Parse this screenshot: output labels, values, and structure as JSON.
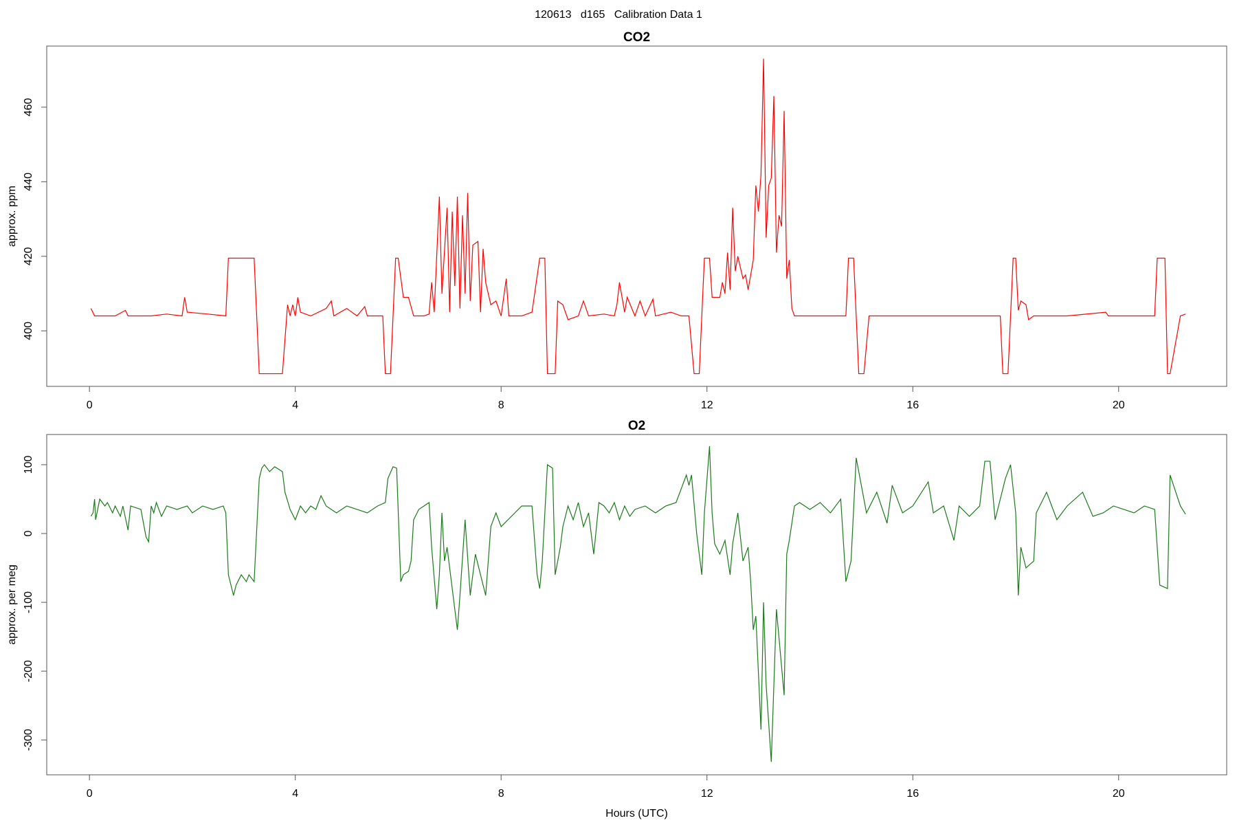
{
  "title": "120613   d165   Calibration Data 1",
  "chart_data": [
    {
      "type": "line",
      "title": "CO2",
      "ylabel": "approx. ppm",
      "color": "#ff0000",
      "xlim": [
        -0.83,
        22.1
      ],
      "ylim": [
        385.1,
        476.4
      ],
      "xticks": [
        0,
        4,
        8,
        12,
        16,
        20
      ],
      "yticks": [
        400,
        420,
        440,
        460
      ],
      "x": [
        0.03,
        0.1,
        0.5,
        0.7,
        0.75,
        1.2,
        1.5,
        1.8,
        1.85,
        1.9,
        2.3,
        2.65,
        2.7,
        3.2,
        3.3,
        3.75,
        3.85,
        3.9,
        3.95,
        4.0,
        4.05,
        4.1,
        4.3,
        4.6,
        4.7,
        4.75,
        5.0,
        5.2,
        5.35,
        5.4,
        5.7,
        5.75,
        5.85,
        5.95,
        6.0,
        6.1,
        6.2,
        6.3,
        6.5,
        6.6,
        6.65,
        6.7,
        6.8,
        6.85,
        6.95,
        7.0,
        7.05,
        7.1,
        7.15,
        7.2,
        7.25,
        7.3,
        7.35,
        7.4,
        7.45,
        7.55,
        7.6,
        7.65,
        7.7,
        7.8,
        7.9,
        8.0,
        8.1,
        8.15,
        8.4,
        8.6,
        8.75,
        8.85,
        8.9,
        9.05,
        9.1,
        9.2,
        9.3,
        9.5,
        9.6,
        9.7,
        10.0,
        10.2,
        10.25,
        10.3,
        10.4,
        10.45,
        10.6,
        10.7,
        10.8,
        10.95,
        11.0,
        11.3,
        11.5,
        11.65,
        11.75,
        11.85,
        11.95,
        12.05,
        12.1,
        12.25,
        12.3,
        12.35,
        12.4,
        12.45,
        12.5,
        12.55,
        12.6,
        12.7,
        12.75,
        12.8,
        12.9,
        12.95,
        13.0,
        13.05,
        13.1,
        13.15,
        13.2,
        13.25,
        13.3,
        13.35,
        13.4,
        13.45,
        13.5,
        13.55,
        13.6,
        13.65,
        13.7,
        14.0,
        14.5,
        14.7,
        14.75,
        14.85,
        14.95,
        15.05,
        15.15,
        16.0,
        17.0,
        17.7,
        17.75,
        17.85,
        17.95,
        18.0,
        18.05,
        18.1,
        18.2,
        18.25,
        18.35,
        19.0,
        19.75,
        19.8,
        20.7,
        20.75,
        20.9,
        20.95,
        21.0,
        21.2,
        21.3
      ],
      "values": [
        406,
        404,
        404,
        405.5,
        404,
        404,
        404.5,
        404,
        409,
        405,
        404.5,
        404,
        419.5,
        419.5,
        388.5,
        388.5,
        407,
        404,
        407,
        404,
        409,
        405,
        404,
        406,
        408,
        404,
        406,
        404,
        406.5,
        404,
        404,
        388.5,
        388.5,
        419.5,
        419.5,
        409,
        409,
        404,
        404,
        404.5,
        413,
        405,
        436,
        410,
        433,
        405,
        432,
        412,
        436,
        406,
        431,
        410,
        437,
        408,
        423,
        424,
        405,
        422,
        413,
        407,
        408,
        404,
        414,
        404,
        404,
        405,
        419.5,
        419.5,
        388.5,
        388.5,
        408,
        407,
        403,
        404,
        408,
        404,
        404.5,
        404,
        407,
        413,
        405,
        409,
        404,
        408,
        404,
        408.5,
        404,
        405,
        404,
        404,
        388.5,
        388.5,
        419.5,
        419.5,
        409,
        409,
        413,
        410,
        421,
        411,
        433,
        416,
        420,
        414,
        415,
        411,
        419,
        439,
        432,
        442,
        473,
        425,
        439,
        441,
        463,
        421,
        431,
        428,
        459,
        414,
        419,
        406,
        404,
        404,
        404,
        404,
        419.5,
        419.5,
        388.5,
        388.5,
        404,
        404,
        404,
        404,
        388.5,
        388.5,
        419.5,
        419.5,
        405.5,
        408,
        407,
        403,
        404,
        404,
        405,
        404,
        404,
        419.5,
        419.5,
        388.5,
        388.5,
        404,
        404.5
      ]
    },
    {
      "type": "line",
      "title": "O2",
      "ylabel": "approx. per meg",
      "xlabel": "Hours (UTC)",
      "color": "#1a7a1a",
      "xlim": [
        -0.83,
        22.1
      ],
      "ylim": [
        -350.7,
        143.9
      ],
      "xticks": [
        0,
        4,
        8,
        12,
        16,
        20
      ],
      "yticks": [
        -300,
        -200,
        -100,
        0,
        100
      ],
      "x": [
        0.03,
        0.07,
        0.1,
        0.12,
        0.2,
        0.3,
        0.35,
        0.45,
        0.5,
        0.6,
        0.65,
        0.75,
        0.8,
        1.0,
        1.1,
        1.15,
        1.2,
        1.25,
        1.3,
        1.4,
        1.5,
        1.7,
        1.9,
        2.0,
        2.2,
        2.4,
        2.6,
        2.65,
        2.7,
        2.8,
        2.85,
        2.95,
        3.05,
        3.1,
        3.2,
        3.3,
        3.35,
        3.4,
        3.5,
        3.6,
        3.75,
        3.8,
        3.9,
        4.0,
        4.1,
        4.2,
        4.3,
        4.4,
        4.5,
        4.6,
        4.8,
        5.0,
        5.2,
        5.4,
        5.6,
        5.75,
        5.8,
        5.9,
        5.97,
        6.05,
        6.1,
        6.2,
        6.25,
        6.3,
        6.4,
        6.5,
        6.6,
        6.65,
        6.75,
        6.8,
        6.85,
        6.9,
        6.95,
        7.05,
        7.15,
        7.2,
        7.3,
        7.4,
        7.5,
        7.6,
        7.7,
        7.8,
        7.9,
        8.0,
        8.2,
        8.4,
        8.6,
        8.7,
        8.75,
        8.8,
        8.9,
        9.0,
        9.05,
        9.15,
        9.2,
        9.3,
        9.4,
        9.5,
        9.6,
        9.7,
        9.8,
        9.9,
        10.0,
        10.1,
        10.2,
        10.3,
        10.4,
        10.5,
        10.6,
        10.8,
        11.0,
        11.2,
        11.4,
        11.6,
        11.65,
        11.7,
        11.8,
        11.9,
        11.95,
        12.05,
        12.1,
        12.15,
        12.25,
        12.35,
        12.45,
        12.5,
        12.6,
        12.7,
        12.8,
        12.85,
        12.9,
        12.95,
        13.05,
        13.1,
        13.15,
        13.25,
        13.35,
        13.5,
        13.55,
        13.6,
        13.7,
        13.8,
        14.0,
        14.2,
        14.4,
        14.6,
        14.7,
        14.8,
        14.9,
        15.0,
        15.1,
        15.3,
        15.5,
        15.6,
        15.8,
        16.0,
        16.3,
        16.4,
        16.6,
        16.8,
        16.9,
        17.1,
        17.3,
        17.4,
        17.5,
        17.6,
        17.8,
        17.9,
        18.0,
        18.05,
        18.1,
        18.2,
        18.35,
        18.4,
        18.6,
        18.8,
        19.0,
        19.3,
        19.5,
        19.7,
        19.9,
        20.1,
        20.3,
        20.5,
        20.7,
        20.8,
        20.95,
        21.0,
        21.2,
        21.3
      ],
      "values": [
        25,
        30,
        50,
        20,
        50,
        40,
        45,
        30,
        40,
        25,
        40,
        5,
        40,
        35,
        -5,
        -12,
        40,
        30,
        45,
        25,
        40,
        35,
        40,
        30,
        40,
        35,
        40,
        30,
        -60,
        -90,
        -75,
        -60,
        -70,
        -60,
        -70,
        80,
        95,
        100,
        90,
        97,
        90,
        60,
        35,
        20,
        40,
        30,
        40,
        35,
        55,
        40,
        30,
        40,
        35,
        30,
        40,
        45,
        80,
        97,
        95,
        -70,
        -60,
        -55,
        -40,
        20,
        35,
        40,
        45,
        -20,
        -110,
        -60,
        30,
        -40,
        -20,
        -80,
        -140,
        -90,
        20,
        -90,
        -30,
        -60,
        -90,
        10,
        30,
        10,
        25,
        40,
        40,
        -60,
        -80,
        -40,
        100,
        95,
        -60,
        -20,
        10,
        40,
        20,
        45,
        10,
        30,
        -30,
        45,
        40,
        30,
        45,
        20,
        40,
        25,
        35,
        40,
        30,
        40,
        45,
        85,
        70,
        85,
        0,
        -60,
        30,
        127,
        30,
        -15,
        -30,
        -10,
        -60,
        -15,
        30,
        -40,
        -20,
        -70,
        -140,
        -120,
        -285,
        -100,
        -220,
        -332,
        -110,
        -235,
        -30,
        -10,
        40,
        45,
        35,
        45,
        30,
        50,
        -70,
        -40,
        110,
        70,
        30,
        60,
        15,
        70,
        30,
        40,
        75,
        30,
        40,
        -10,
        40,
        25,
        40,
        105,
        105,
        20,
        80,
        100,
        30,
        -90,
        -20,
        -50,
        -40,
        30,
        60,
        20,
        40,
        60,
        25,
        30,
        40,
        35,
        30,
        40,
        35,
        -75,
        -80,
        85,
        40,
        28
      ]
    }
  ]
}
